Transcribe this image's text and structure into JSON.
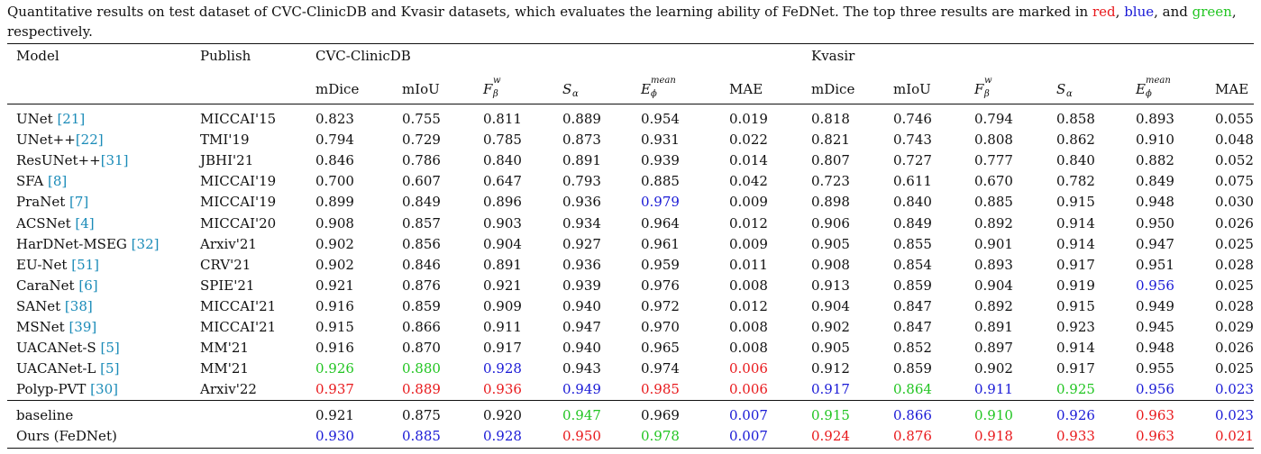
{
  "caption": {
    "text": "Quantitative results on test dataset of CVC-ClinicDB and Kvasir datasets, which evaluates the learning ability of FeDNet. The top three results are marked in ",
    "red": "red",
    "sep1": ", ",
    "blue": "blue",
    "sep2": ", and ",
    "green": "green",
    "tail": ", respectively."
  },
  "header": {
    "model": "Model",
    "publish": "Publish",
    "dataset1": "CVC-ClinicDB",
    "dataset2": "Kvasir",
    "metrics": [
      "mDice",
      "mIoU",
      "F",
      "S",
      "E",
      "MAE"
    ],
    "metric_sub": [
      "",
      "",
      "β",
      "α",
      "ϕ",
      ""
    ],
    "metric_sup": [
      "",
      "",
      "w",
      "",
      "mean",
      ""
    ]
  },
  "rows": [
    {
      "name": "UNet",
      "ref": "[21]",
      "sep": " ",
      "pub": "MICCAI'15",
      "v": [
        "0.823",
        "0.755",
        "0.811",
        "0.889",
        "0.954",
        "0.019",
        "0.818",
        "0.746",
        "0.794",
        "0.858",
        "0.893",
        "0.055"
      ],
      "c": [
        "k",
        "k",
        "k",
        "k",
        "k",
        "k",
        "k",
        "k",
        "k",
        "k",
        "k",
        "k"
      ]
    },
    {
      "name": "UNet++",
      "ref": "[22]",
      "sep": "",
      "pub": "TMI'19",
      "v": [
        "0.794",
        "0.729",
        "0.785",
        "0.873",
        "0.931",
        "0.022",
        "0.821",
        "0.743",
        "0.808",
        "0.862",
        "0.910",
        "0.048"
      ],
      "c": [
        "k",
        "k",
        "k",
        "k",
        "k",
        "k",
        "k",
        "k",
        "k",
        "k",
        "k",
        "k"
      ]
    },
    {
      "name": "ResUNet++",
      "ref": "[31]",
      "sep": "",
      "pub": "JBHI'21",
      "v": [
        "0.846",
        "0.786",
        "0.840",
        "0.891",
        "0.939",
        "0.014",
        "0.807",
        "0.727",
        "0.777",
        "0.840",
        "0.882",
        "0.052"
      ],
      "c": [
        "k",
        "k",
        "k",
        "k",
        "k",
        "k",
        "k",
        "k",
        "k",
        "k",
        "k",
        "k"
      ]
    },
    {
      "name": "SFA",
      "ref": "[8]",
      "sep": " ",
      "pub": "MICCAI'19",
      "v": [
        "0.700",
        "0.607",
        "0.647",
        "0.793",
        "0.885",
        "0.042",
        "0.723",
        "0.611",
        "0.670",
        "0.782",
        "0.849",
        "0.075"
      ],
      "c": [
        "k",
        "k",
        "k",
        "k",
        "k",
        "k",
        "k",
        "k",
        "k",
        "k",
        "k",
        "k"
      ]
    },
    {
      "name": "PraNet",
      "ref": "[7]",
      "sep": " ",
      "pub": "MICCAI'19",
      "v": [
        "0.899",
        "0.849",
        "0.896",
        "0.936",
        "0.979",
        "0.009",
        "0.898",
        "0.840",
        "0.885",
        "0.915",
        "0.948",
        "0.030"
      ],
      "c": [
        "k",
        "k",
        "k",
        "k",
        "b",
        "k",
        "k",
        "k",
        "k",
        "k",
        "k",
        "k"
      ]
    },
    {
      "name": "ACSNet",
      "ref": "[4]",
      "sep": " ",
      "pub": "MICCAI'20",
      "v": [
        "0.908",
        "0.857",
        "0.903",
        "0.934",
        "0.964",
        "0.012",
        "0.906",
        "0.849",
        "0.892",
        "0.914",
        "0.950",
        "0.026"
      ],
      "c": [
        "k",
        "k",
        "k",
        "k",
        "k",
        "k",
        "k",
        "k",
        "k",
        "k",
        "k",
        "k"
      ]
    },
    {
      "name": "HarDNet-MSEG",
      "ref": "[32]",
      "sep": " ",
      "pub": "Arxiv'21",
      "v": [
        "0.902",
        "0.856",
        "0.904",
        "0.927",
        "0.961",
        "0.009",
        "0.905",
        "0.855",
        "0.901",
        "0.914",
        "0.947",
        "0.025"
      ],
      "c": [
        "k",
        "k",
        "k",
        "k",
        "k",
        "k",
        "k",
        "k",
        "k",
        "k",
        "k",
        "k"
      ]
    },
    {
      "name": "EU-Net",
      "ref": "[51]",
      "sep": " ",
      "pub": "CRV'21",
      "v": [
        "0.902",
        "0.846",
        "0.891",
        "0.936",
        "0.959",
        "0.011",
        "0.908",
        "0.854",
        "0.893",
        "0.917",
        "0.951",
        "0.028"
      ],
      "c": [
        "k",
        "k",
        "k",
        "k",
        "k",
        "k",
        "k",
        "k",
        "k",
        "k",
        "k",
        "k"
      ]
    },
    {
      "name": "CaraNet",
      "ref": "[6]",
      "sep": " ",
      "pub": "SPIE'21",
      "v": [
        "0.921",
        "0.876",
        "0.921",
        "0.939",
        "0.976",
        "0.008",
        "0.913",
        "0.859",
        "0.904",
        "0.919",
        "0.956",
        "0.025"
      ],
      "c": [
        "k",
        "k",
        "k",
        "k",
        "k",
        "k",
        "k",
        "k",
        "k",
        "k",
        "b",
        "k"
      ]
    },
    {
      "name": "SANet",
      "ref": "[38]",
      "sep": " ",
      "pub": "MICCAI'21",
      "v": [
        "0.916",
        "0.859",
        "0.909",
        "0.940",
        "0.972",
        "0.012",
        "0.904",
        "0.847",
        "0.892",
        "0.915",
        "0.949",
        "0.028"
      ],
      "c": [
        "k",
        "k",
        "k",
        "k",
        "k",
        "k",
        "k",
        "k",
        "k",
        "k",
        "k",
        "k"
      ]
    },
    {
      "name": "MSNet",
      "ref": "[39]",
      "sep": " ",
      "pub": "MICCAI'21",
      "v": [
        "0.915",
        "0.866",
        "0.911",
        "0.947",
        "0.970",
        "0.008",
        "0.902",
        "0.847",
        "0.891",
        "0.923",
        "0.945",
        "0.029"
      ],
      "c": [
        "k",
        "k",
        "k",
        "k",
        "k",
        "k",
        "k",
        "k",
        "k",
        "k",
        "k",
        "k"
      ]
    },
    {
      "name": "UACANet-S",
      "ref": "[5]",
      "sep": " ",
      "pub": "MM'21",
      "v": [
        "0.916",
        "0.870",
        "0.917",
        "0.940",
        "0.965",
        "0.008",
        "0.905",
        "0.852",
        "0.897",
        "0.914",
        "0.948",
        "0.026"
      ],
      "c": [
        "k",
        "k",
        "k",
        "k",
        "k",
        "k",
        "k",
        "k",
        "k",
        "k",
        "k",
        "k"
      ]
    },
    {
      "name": "UACANet-L",
      "ref": "[5]",
      "sep": " ",
      "pub": "MM'21",
      "v": [
        "0.926",
        "0.880",
        "0.928",
        "0.943",
        "0.974",
        "0.006",
        "0.912",
        "0.859",
        "0.902",
        "0.917",
        "0.955",
        "0.025"
      ],
      "c": [
        "g",
        "g",
        "b",
        "k",
        "k",
        "r",
        "k",
        "k",
        "k",
        "k",
        "k",
        "k"
      ]
    },
    {
      "name": "Polyp-PVT",
      "ref": "[30]",
      "sep": " ",
      "pub": "Arxiv'22",
      "v": [
        "0.937",
        "0.889",
        "0.936",
        "0.949",
        "0.985",
        "0.006",
        "0.917",
        "0.864",
        "0.911",
        "0.925",
        "0.956",
        "0.023"
      ],
      "c": [
        "r",
        "r",
        "r",
        "b",
        "r",
        "r",
        "b",
        "g",
        "b",
        "g",
        "b",
        "b"
      ]
    }
  ],
  "ours": [
    {
      "name": "baseline",
      "ref": "",
      "sep": "",
      "pub": "",
      "v": [
        "0.921",
        "0.875",
        "0.920",
        "0.947",
        "0.969",
        "0.007",
        "0.915",
        "0.866",
        "0.910",
        "0.926",
        "0.963",
        "0.023"
      ],
      "c": [
        "k",
        "k",
        "k",
        "g",
        "k",
        "b",
        "g",
        "b",
        "g",
        "b",
        "r",
        "b"
      ]
    },
    {
      "name": "Ours (FeDNet)",
      "ref": "",
      "sep": "",
      "pub": "",
      "v": [
        "0.930",
        "0.885",
        "0.928",
        "0.950",
        "0.978",
        "0.007",
        "0.924",
        "0.876",
        "0.918",
        "0.933",
        "0.963",
        "0.021"
      ],
      "c": [
        "b",
        "b",
        "b",
        "r",
        "g",
        "b",
        "r",
        "r",
        "r",
        "r",
        "r",
        "r"
      ]
    }
  ],
  "colors": {
    "red": "#e8191c",
    "blue": "#1a1ad6",
    "green": "#22c522",
    "ref": "#1a8bb8"
  }
}
